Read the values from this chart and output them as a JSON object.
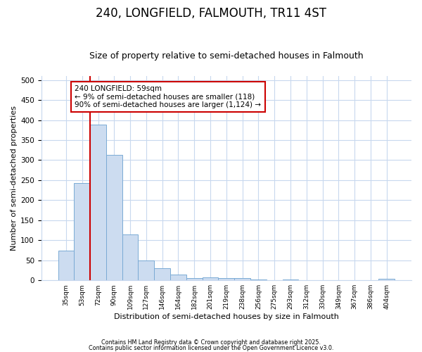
{
  "title1": "240, LONGFIELD, FALMOUTH, TR11 4ST",
  "title2": "Size of property relative to semi-detached houses in Falmouth",
  "xlabel": "Distribution of semi-detached houses by size in Falmouth",
  "ylabel": "Number of semi-detached properties",
  "categories": [
    "35sqm",
    "53sqm",
    "72sqm",
    "90sqm",
    "109sqm",
    "127sqm",
    "146sqm",
    "164sqm",
    "182sqm",
    "201sqm",
    "219sqm",
    "238sqm",
    "256sqm",
    "275sqm",
    "293sqm",
    "312sqm",
    "330sqm",
    "349sqm",
    "367sqm",
    "386sqm",
    "404sqm"
  ],
  "values": [
    75,
    243,
    388,
    314,
    114,
    50,
    30,
    15,
    6,
    8,
    6,
    5,
    3,
    0,
    2,
    0,
    0,
    1,
    0,
    0,
    4
  ],
  "bar_color": "#ccdcf0",
  "bar_edge_color": "#7aaad4",
  "vline_x": 1.5,
  "vline_color": "#cc0000",
  "annotation_text": "240 LONGFIELD: 59sqm\n← 9% of semi-detached houses are smaller (118)\n90% of semi-detached houses are larger (1,124) →",
  "annotation_box_color": "#ffffff",
  "annotation_box_edge": "#cc0000",
  "ylim": [
    0,
    510
  ],
  "yticks": [
    0,
    50,
    100,
    150,
    200,
    250,
    300,
    350,
    400,
    450,
    500
  ],
  "footer1": "Contains HM Land Registry data © Crown copyright and database right 2025.",
  "footer2": "Contains public sector information licensed under the Open Government Licence v3.0.",
  "bg_color": "#ffffff",
  "grid_color": "#c8d8ee",
  "title1_fontsize": 12,
  "title2_fontsize": 9
}
